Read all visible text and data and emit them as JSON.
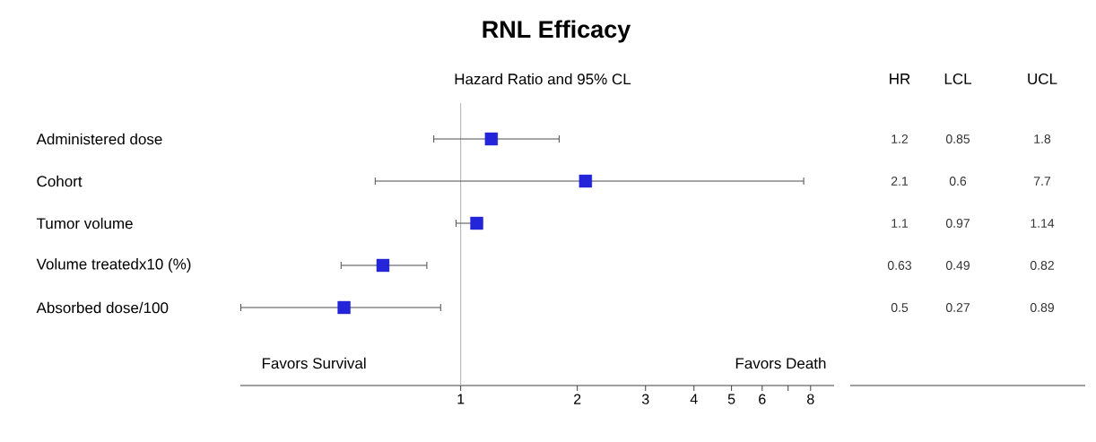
{
  "chart_data": {
    "type": "scatter",
    "title": "RNL Efficacy",
    "subtitle": "Hazard Ratio and 95% CL",
    "categories": [
      "Administered dose",
      "Cohort",
      "Tumor volume",
      "Volume treatedx10 (%)",
      "Absorbed dose/100"
    ],
    "values": [
      1.2,
      2.1,
      1.1,
      0.63,
      0.5
    ],
    "errors": [
      [
        0.85,
        1.8
      ],
      [
        0.6,
        7.7
      ],
      [
        0.97,
        1.14
      ],
      [
        0.49,
        0.82
      ],
      [
        0.27,
        0.89
      ]
    ],
    "color": "#2424d8",
    "orientation": "horizontal",
    "log": "x",
    "marker": "square",
    "data_labels": true,
    "xlim": [
      0.27,
      9.2
    ],
    "xticks": [
      1,
      2,
      3,
      4,
      5,
      6,
      {
        "value": 7,
        "label": null
      },
      8
    ],
    "ref_lines": [
      {
        "axis": "x",
        "value": 1,
        "color": "#b0b0b0"
      }
    ],
    "annotations": [
      "Favors Survival",
      "Favors Death",
      "HR",
      "LCL",
      "UCL",
      "0.85",
      "1.8",
      "0.6",
      "7.7",
      "0.97",
      "1.14",
      "0.49",
      "0.82",
      "0.27",
      "0.89"
    ]
  }
}
